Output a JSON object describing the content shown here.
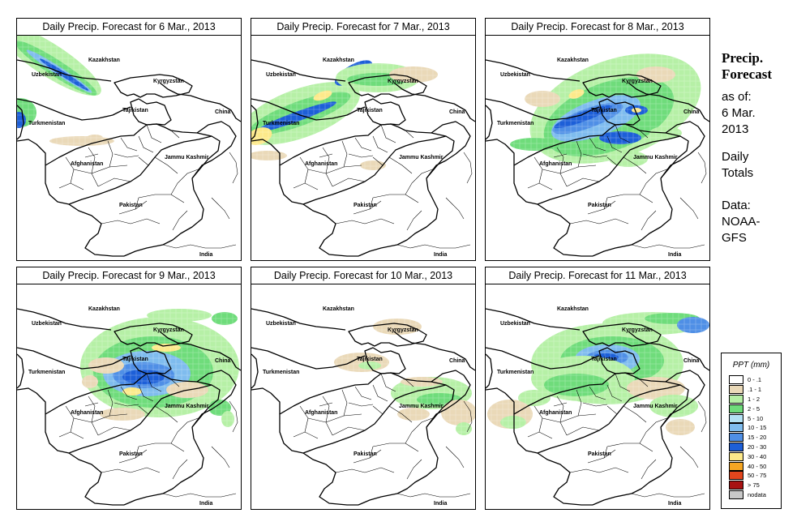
{
  "panels": [
    {
      "title": "Daily Precip. Forecast for  6 Mar., 2013"
    },
    {
      "title": "Daily Precip. Forecast for  7 Mar., 2013"
    },
    {
      "title": "Daily Precip. Forecast for  8 Mar., 2013"
    },
    {
      "title": "Daily Precip. Forecast for  9 Mar., 2013"
    },
    {
      "title": "Daily Precip. Forecast for  10 Mar., 2013"
    },
    {
      "title": "Daily Precip. Forecast for  11 Mar., 2013"
    }
  ],
  "map_labels": {
    "kazakhstan": "Kazakhstan",
    "uzbekistan": "Uzbekistan",
    "kyrgyzstan": "Kyrgyzstan",
    "tajikistan": "Tajikistan",
    "turkmenistan": "Turkmenistan",
    "china": "China",
    "jammu_kashmir": "Jammu Kashmir",
    "afghanistan": "Afghanistan",
    "pakistan": "Pakistan",
    "india": "India"
  },
  "sidebar": {
    "title_line1": "Precip.",
    "title_line2": "Forecast",
    "asof_line1": "as of:",
    "asof_line2": "6 Mar.",
    "asof_line3": "2013",
    "daily_line1": "Daily",
    "daily_line2": "Totals",
    "data_line1": "Data:",
    "data_line2": "NOAA-",
    "data_line3": "GFS"
  },
  "legend": {
    "title": "PPT (mm)",
    "items": [
      {
        "label": "0 - .1",
        "color": "#ffffff"
      },
      {
        "label": ".1 - 1",
        "color": "#ead9b8"
      },
      {
        "label": "1 - 2",
        "color": "#b6f0a6"
      },
      {
        "label": "2 - 5",
        "color": "#6fdc7b"
      },
      {
        "label": "5 - 10",
        "color": "#b4e2f4"
      },
      {
        "label": "10 - 15",
        "color": "#7fbcee"
      },
      {
        "label": "15 - 20",
        "color": "#4f8fe6"
      },
      {
        "label": "20 - 30",
        "color": "#1d5fd8"
      },
      {
        "label": "30 - 40",
        "color": "#fde98a"
      },
      {
        "label": "40 - 50",
        "color": "#f5a623"
      },
      {
        "label": "50 - 75",
        "color": "#e2461d"
      },
      {
        "label": "> 75",
        "color": "#a81212"
      },
      {
        "label": "nodata",
        "color": "#c8c8c8"
      }
    ]
  }
}
